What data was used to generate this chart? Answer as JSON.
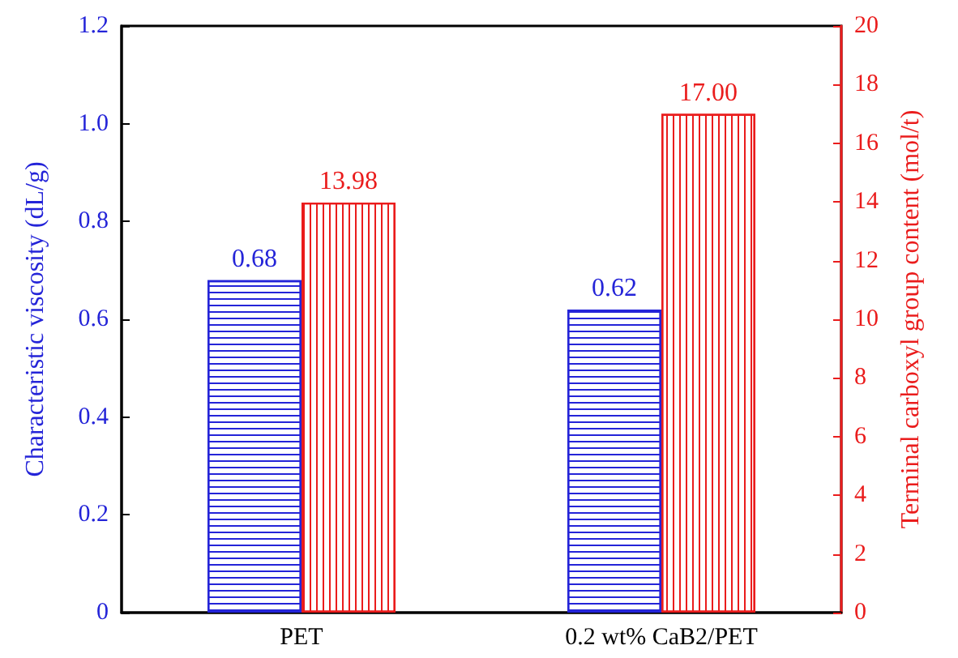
{
  "chart_data": {
    "type": "bar",
    "ylabel": "Characteristic viscosity (dL/g)",
    "y2label": "Terminal carboxyl group content (mol/t)",
    "categories": [
      "PET",
      "0.2 wt% CaB2/PET"
    ],
    "series": [
      {
        "color": "#2424d8",
        "values": [
          0.68,
          0.62
        ]
      },
      {
        "color": "#ea1c1c",
        "values": [
          13.98,
          17.0
        ],
        "axis": "y2",
        "value_labels": [
          "13.98",
          "17.00"
        ]
      }
    ],
    "value_labels": [
      "0.68",
      "0.62"
    ],
    "ylim": [
      0,
      1.2
    ],
    "yticks": [
      0,
      0.2,
      0.4,
      0.6,
      0.8,
      {
        "value": 1,
        "label": "1.0"
      },
      1.2
    ],
    "y2lim": [
      0,
      20
    ],
    "y2ticks": [
      0,
      2,
      4,
      6,
      8,
      10,
      12,
      14,
      16,
      18,
      20
    ],
    "grid": false
  }
}
